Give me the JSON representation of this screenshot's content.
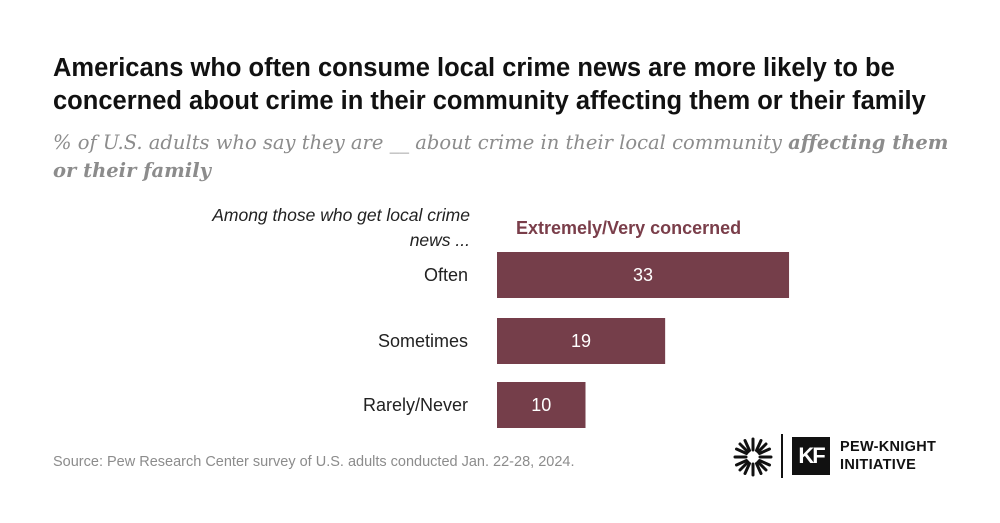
{
  "title": "Americans who often consume local crime news are more likely to be concerned about crime in their community affecting them or their family",
  "subtitle": {
    "plain": "% of U.S. adults who say they are __ about crime in their local community ",
    "emphasis": "affecting them or their family"
  },
  "chart_data": {
    "type": "bar",
    "orientation": "horizontal",
    "row_header": "Among those who get local crime news ...",
    "categories": [
      "Often",
      "Sometimes",
      "Rarely/Never"
    ],
    "series": [
      {
        "name": "Extremely/Very concerned",
        "values": [
          33,
          19,
          10
        ],
        "color": "#753e4a"
      }
    ],
    "data_label_color": "#ffffff",
    "grid": false,
    "legend": "top"
  },
  "source": "Source: Pew Research Center survey of U.S. adults conducted Jan. 22-28, 2024.",
  "logo": {
    "mark": "KF",
    "line1": "PEW-KNIGHT",
    "line2": "INITIATIVE"
  }
}
